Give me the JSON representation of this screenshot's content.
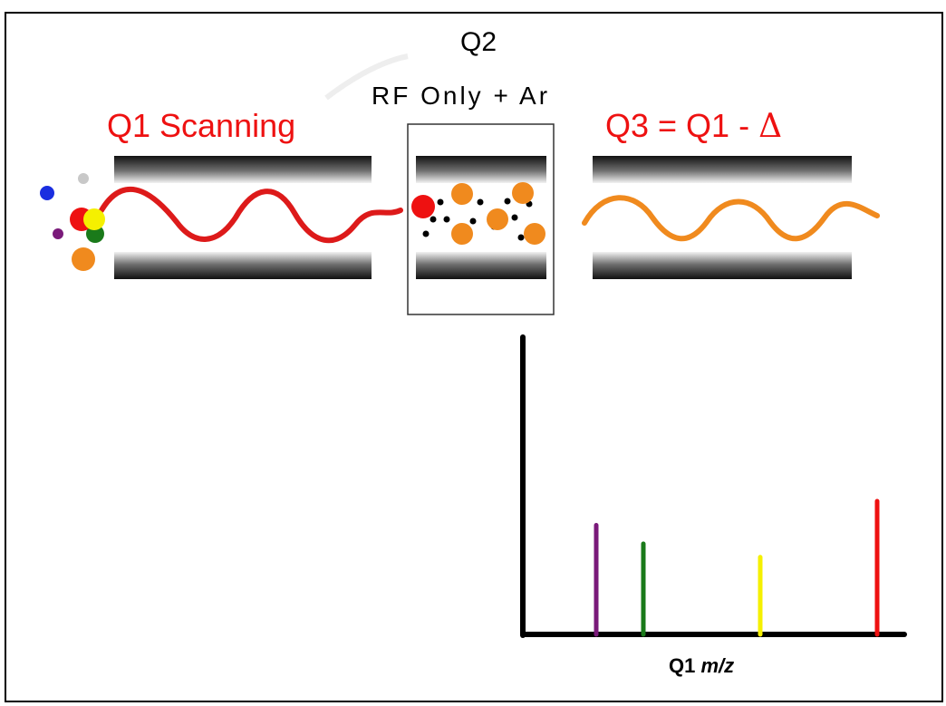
{
  "labels": {
    "q2_title": "Q2",
    "q2_subtitle": "RF Only + Ar",
    "q1_title": "Q1 Scanning",
    "q3_prefix": "Q3 = Q1 - ",
    "q3_delta": "Δ",
    "x_axis_prefix": "Q1 ",
    "x_axis_italic": "m/z"
  },
  "colors": {
    "label_red": "#ee1111",
    "wave_q1": "#dd1a1a",
    "wave_q3": "#f08a1e",
    "ion_blue": "#1a2ee0",
    "ion_gray": "#c8c8c8",
    "ion_purple": "#7a1a7a",
    "ion_red": "#ee1111",
    "ion_yellow": "#f5f000",
    "ion_green": "#1a7a1a",
    "ion_orange": "#f08a1e"
  },
  "chart_data": {
    "type": "bar",
    "x": [
      "purple ion",
      "green ion",
      "yellow ion",
      "red ion"
    ],
    "values": [
      0.82,
      0.68,
      0.58,
      1.0
    ],
    "colors": [
      "#7a1a7a",
      "#1a7a1a",
      "#f5f000",
      "#ee1111"
    ],
    "xlabel": "Q1 m/z",
    "ylabel": "",
    "grid": false
  }
}
